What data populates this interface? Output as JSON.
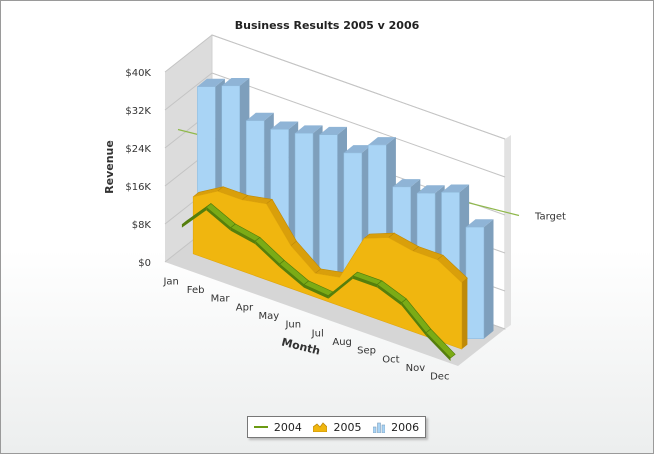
{
  "chart_data": {
    "type": "bar",
    "title": "Business Results 2005 v 2006",
    "xlabel": "Month",
    "ylabel": "Revenue",
    "categories": [
      "Jan",
      "Feb",
      "Mar",
      "Apr",
      "May",
      "Jun",
      "Jul",
      "Aug",
      "Sep",
      "Oct",
      "Nov",
      "Dec"
    ],
    "yticks": [
      "$0",
      "$8K",
      "$16K",
      "$24K",
      "$32K",
      "$40K"
    ],
    "ylim": [
      0,
      40000
    ],
    "series": [
      {
        "name": "2004",
        "type": "line",
        "color": "#6b9a12",
        "values": [
          8000,
          13500,
          11000,
          10000,
          7000,
          4500,
          4000,
          10000,
          10000,
          8000,
          3500,
          0
        ]
      },
      {
        "name": "2005",
        "type": "area",
        "color": "#f0b60f",
        "values": [
          12000,
          15000,
          15000,
          16000,
          9000,
          5000,
          6000,
          16000,
          18000,
          17000,
          17000,
          14000
        ]
      },
      {
        "name": "2006",
        "type": "bar",
        "color": "#a9d4f5",
        "values": [
          33000,
          35000,
          29500,
          29500,
          30500,
          32000,
          30000,
          33500,
          26500,
          27000,
          29000,
          23500
        ]
      }
    ],
    "trendline": {
      "label": "Target",
      "value": 26000,
      "color": "#8fb84b"
    },
    "legend_position": "bottom",
    "grid": true
  },
  "colors": {
    "bar_front": "#a9d4f5",
    "bar_side": "#7e9fbc",
    "bar_top": "#8fb4d6",
    "area": "#f0b60f",
    "area_dark": "#bf8a08",
    "line": "#6b9a12"
  }
}
